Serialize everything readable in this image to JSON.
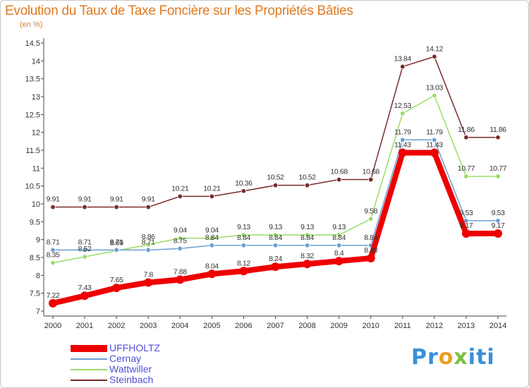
{
  "title": "Evolution du Taux de Taxe Foncière sur les Propriétés Bâties",
  "subtitle": "(en %)",
  "logo": {
    "part1": "Pr",
    "part2": "o",
    "part3": "x",
    "part4": "iti"
  },
  "chart_data": {
    "type": "line",
    "title": "Evolution du Taux de Taxe Foncière sur les Propriétés Bâties",
    "ylabel": "(en %)",
    "xlabel": "",
    "ylim": [
      7,
      14.5
    ],
    "yticks": [
      7,
      7.5,
      8,
      8.5,
      9,
      9.5,
      10,
      10.5,
      11,
      11.5,
      12,
      12.5,
      13,
      13.5,
      14,
      14.5
    ],
    "categories": [
      "2000",
      "2001",
      "2002",
      "2003",
      "2004",
      "2005",
      "2006",
      "2007",
      "2008",
      "2009",
      "2010",
      "2011",
      "2012",
      "2013",
      "2014"
    ],
    "series": [
      {
        "name": "UFFHOLTZ",
        "color": "#ee0000",
        "values": [
          7.22,
          7.43,
          7.65,
          7.8,
          7.88,
          8.04,
          8.12,
          8.24,
          8.32,
          8.4,
          8.48,
          11.43,
          11.43,
          9.17,
          9.17
        ],
        "labels": [
          "7.22",
          "7.43",
          "7.65",
          "7.8",
          "7.88",
          "8.04",
          "8.12",
          "8.24",
          "8.32",
          "8.4",
          "8.48",
          "11.43",
          "11.43",
          "9.17",
          "9.17"
        ]
      },
      {
        "name": "Cernay",
        "color": "#6a9fd4",
        "values": [
          8.71,
          8.71,
          8.71,
          8.71,
          8.75,
          8.84,
          8.84,
          8.84,
          8.84,
          8.84,
          8.84,
          11.79,
          11.79,
          9.53,
          9.53
        ],
        "labels": [
          "8.71",
          "8.71",
          "8.71",
          "8.71",
          "8.75",
          "8.84",
          "8.84",
          "8.84",
          "8.84",
          "8.84",
          "8.84",
          "11.79",
          "11.79",
          "9.53",
          "9.53"
        ]
      },
      {
        "name": "Wattwiller",
        "color": "#99dd66",
        "values": [
          8.35,
          8.52,
          8.69,
          8.86,
          9.04,
          9.04,
          9.13,
          9.13,
          9.13,
          9.13,
          9.58,
          12.53,
          13.03,
          10.77,
          10.77
        ],
        "labels": [
          "8.35",
          "8.52",
          "8.69",
          "8.86",
          "9.04",
          "9.04",
          "9.13",
          "9.13",
          "9.13",
          "9.13",
          "9.58",
          "12.53",
          "13.03",
          "10.77",
          "10.77"
        ]
      },
      {
        "name": "Steinbach",
        "color": "#7a2a2a",
        "values": [
          9.91,
          9.91,
          9.91,
          9.91,
          10.21,
          10.21,
          10.36,
          10.52,
          10.52,
          10.68,
          10.68,
          13.84,
          14.12,
          11.86,
          11.86
        ],
        "labels": [
          "9.91",
          "9.91",
          "9.91",
          "9.91",
          "10.21",
          "10.21",
          "10.36",
          "10.52",
          "10.52",
          "10.68",
          "10.68",
          "13.84",
          "14.12",
          "11.86",
          "11.86"
        ]
      }
    ],
    "legend": [
      "UFFHOLTZ",
      "Cernay",
      "Wattwiller",
      "Steinbach"
    ],
    "legend_position": "bottom-left",
    "grid": false
  }
}
